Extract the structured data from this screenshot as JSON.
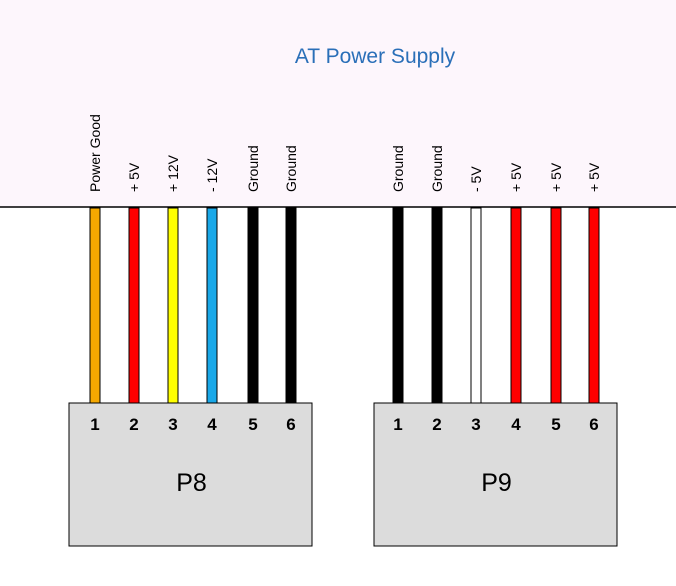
{
  "title": "AT Power Supply",
  "colors": {
    "psu_body": "#fdf6fc",
    "connector_fill": "#dcdcdc",
    "title": "#2a6fb8"
  },
  "connectors": [
    {
      "name": "P8",
      "pins": [
        {
          "number": "1",
          "label": "Power Good",
          "wire_color": "#f5a800"
        },
        {
          "number": "2",
          "label": "+ 5V",
          "wire_color": "#ff0000"
        },
        {
          "number": "3",
          "label": "+ 12V",
          "wire_color": "#ffff00"
        },
        {
          "number": "4",
          "label": "- 12V",
          "wire_color": "#19a8e8"
        },
        {
          "number": "5",
          "label": "Ground",
          "wire_color": "#000000"
        },
        {
          "number": "6",
          "label": "Ground",
          "wire_color": "#000000"
        }
      ]
    },
    {
      "name": "P9",
      "pins": [
        {
          "number": "1",
          "label": "Ground",
          "wire_color": "#000000"
        },
        {
          "number": "2",
          "label": "Ground",
          "wire_color": "#000000"
        },
        {
          "number": "3",
          "label": "- 5V",
          "wire_color": "#ffffff"
        },
        {
          "number": "4",
          "label": "+ 5V",
          "wire_color": "#ff0000"
        },
        {
          "number": "5",
          "label": "+ 5V",
          "wire_color": "#ff0000"
        },
        {
          "number": "6",
          "label": "+ 5V",
          "wire_color": "#ff0000"
        }
      ]
    }
  ]
}
